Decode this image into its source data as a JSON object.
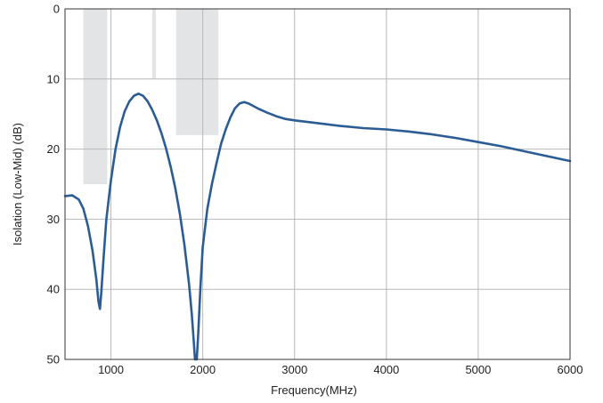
{
  "chart_data": {
    "type": "line",
    "title": "",
    "xlabel": "Frequency(MHz)",
    "ylabel": "Isolation (Low-Mid) (dB)",
    "xlim": [
      500,
      6000
    ],
    "ylim": [
      0,
      50
    ],
    "y_inverted": true,
    "grid": true,
    "x_ticks": [
      1000,
      2000,
      3000,
      4000,
      5000,
      6000
    ],
    "y_ticks": [
      0,
      10,
      20,
      30,
      40,
      50
    ],
    "colors": {
      "line": "#2b5d94",
      "band": "#e3e4e6",
      "grid": "#b8b8b8",
      "frame": "#333333"
    },
    "shaded_bands": [
      {
        "x_start": 700,
        "x_end": 960,
        "y_from": 0,
        "y_to": 25
      },
      {
        "x_start": 1450,
        "x_end": 1490,
        "y_from": 0,
        "y_to": 10
      },
      {
        "x_start": 1710,
        "x_end": 2170,
        "y_from": 0,
        "y_to": 18
      }
    ],
    "series": [
      {
        "points": [
          [
            500,
            26.7
          ],
          [
            580,
            26.6
          ],
          [
            650,
            27.2
          ],
          [
            700,
            28.5
          ],
          [
            750,
            31.0
          ],
          [
            800,
            34.5
          ],
          [
            840,
            38.5
          ],
          [
            865,
            41.8
          ],
          [
            880,
            42.8
          ],
          [
            895,
            40.5
          ],
          [
            920,
            35.5
          ],
          [
            950,
            30.0
          ],
          [
            1000,
            24.5
          ],
          [
            1050,
            20.0
          ],
          [
            1100,
            16.8
          ],
          [
            1150,
            14.6
          ],
          [
            1200,
            13.2
          ],
          [
            1250,
            12.4
          ],
          [
            1300,
            12.1
          ],
          [
            1350,
            12.4
          ],
          [
            1400,
            13.2
          ],
          [
            1450,
            14.4
          ],
          [
            1500,
            15.9
          ],
          [
            1550,
            17.7
          ],
          [
            1600,
            19.9
          ],
          [
            1650,
            22.5
          ],
          [
            1700,
            25.5
          ],
          [
            1750,
            29.2
          ],
          [
            1800,
            33.6
          ],
          [
            1850,
            39.2
          ],
          [
            1880,
            43.5
          ],
          [
            1900,
            47.0
          ],
          [
            1915,
            50.0
          ],
          [
            1935,
            50.0
          ],
          [
            1950,
            46.5
          ],
          [
            1975,
            39.5
          ],
          [
            2000,
            34.0
          ],
          [
            2050,
            28.5
          ],
          [
            2100,
            25.0
          ],
          [
            2150,
            22.0
          ],
          [
            2200,
            19.2
          ],
          [
            2250,
            17.2
          ],
          [
            2300,
            15.5
          ],
          [
            2350,
            14.2
          ],
          [
            2400,
            13.5
          ],
          [
            2450,
            13.3
          ],
          [
            2500,
            13.5
          ],
          [
            2600,
            14.2
          ],
          [
            2700,
            14.8
          ],
          [
            2800,
            15.3
          ],
          [
            2900,
            15.7
          ],
          [
            3000,
            15.9
          ],
          [
            3250,
            16.3
          ],
          [
            3500,
            16.7
          ],
          [
            3750,
            17.0
          ],
          [
            4000,
            17.2
          ],
          [
            4250,
            17.5
          ],
          [
            4500,
            17.9
          ],
          [
            4750,
            18.4
          ],
          [
            5000,
            19.0
          ],
          [
            5250,
            19.6
          ],
          [
            5500,
            20.3
          ],
          [
            5750,
            21.0
          ],
          [
            6000,
            21.7
          ]
        ]
      }
    ]
  }
}
